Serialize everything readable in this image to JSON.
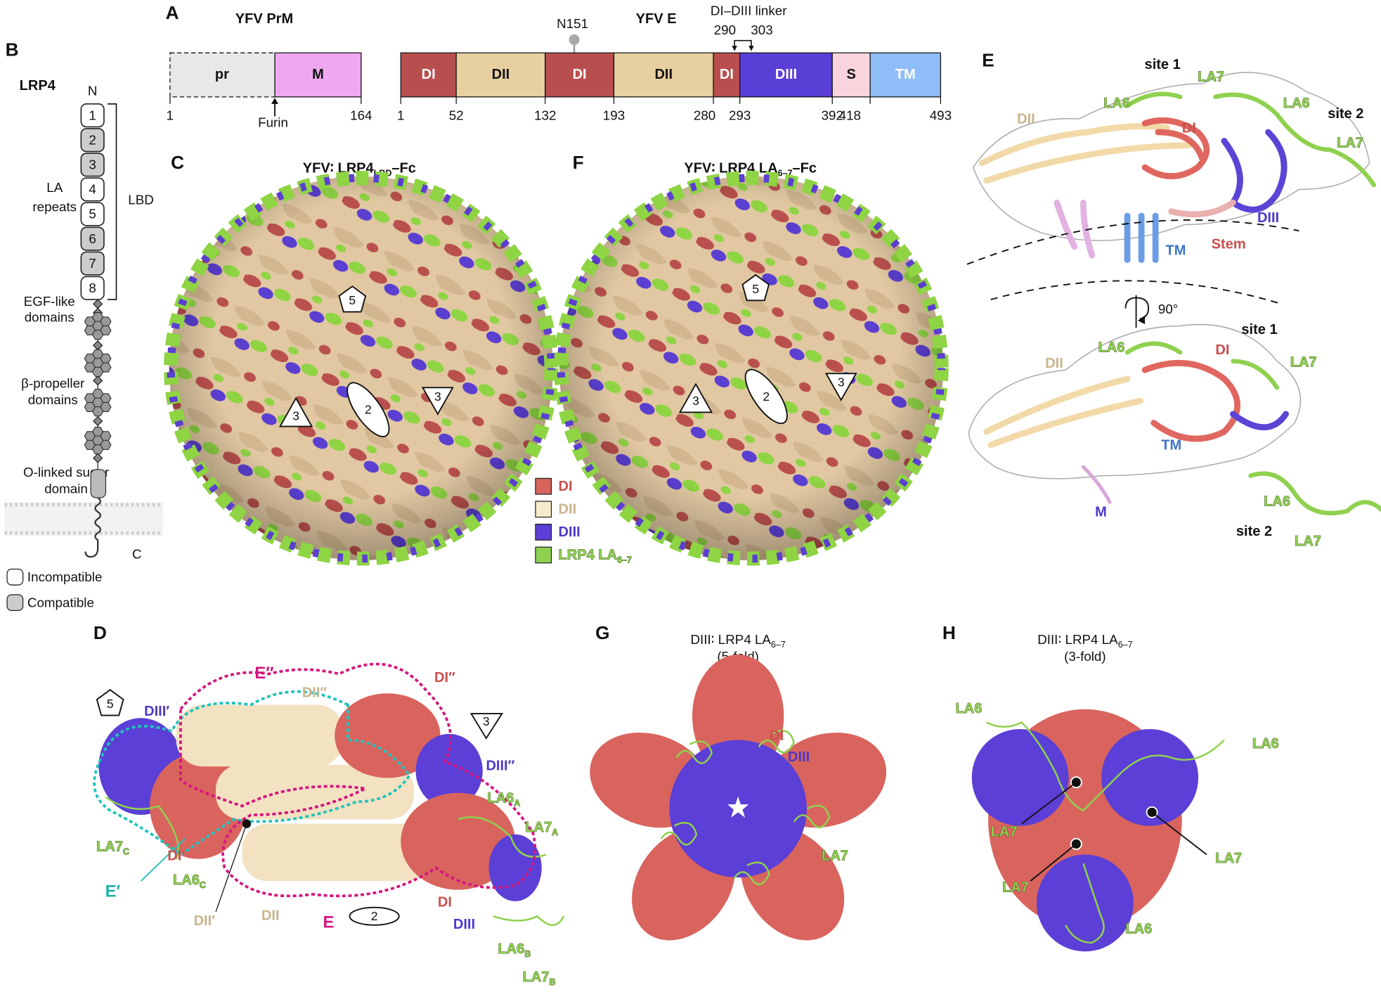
{
  "panel_a": {
    "label": "A",
    "prm": {
      "title": "YFV PrM",
      "segments": [
        "pr",
        "M"
      ],
      "positions": [
        1,
        164
      ],
      "cleavage": "Furin"
    },
    "e": {
      "title": "YFV E",
      "glycan": "N151",
      "linker": "DI–DIII linker",
      "linker_positions": [
        290,
        303
      ],
      "segments": [
        "DI",
        "DII",
        "DI",
        "DII",
        "DI",
        "DIII",
        "S",
        "TM"
      ],
      "positions": [
        1,
        52,
        132,
        193,
        280,
        293,
        392,
        418,
        493
      ]
    }
  },
  "panel_b": {
    "label": "B",
    "title": "LRP4",
    "n_term": "N",
    "repeats": [
      1,
      2,
      3,
      4,
      5,
      6,
      7,
      8
    ],
    "repeats_label": [
      "LA",
      "repeats"
    ],
    "lbd": "LBD",
    "egf": [
      "EGF-like",
      "domains"
    ],
    "propeller": [
      "β-propeller",
      "domains"
    ],
    "sugar": [
      "O-linked sugar",
      "domain"
    ],
    "c_term": "C",
    "legend": [
      "Incompatible",
      "Compatible"
    ]
  },
  "panel_c": {
    "label": "C",
    "title": [
      "YFV∶ LRP4",
      "LBD",
      "–Fc"
    ],
    "symmetry": [
      5,
      2,
      3,
      3
    ]
  },
  "legend": [
    {
      "name": [
        "DI"
      ],
      "color": "#d9645e"
    },
    {
      "name": [
        "DII"
      ],
      "color": "#f6ebc8"
    },
    {
      "name": [
        "DIII"
      ],
      "color": "#5b3fd6"
    },
    {
      "name": [
        "LRP4 LA",
        "6–7"
      ],
      "color": "#8fd14f"
    }
  ],
  "panel_f": {
    "label": "F",
    "title": [
      "YFV∶ LRP4 LA",
      "6–7",
      "–Fc"
    ],
    "symmetry": [
      5,
      2,
      3,
      3
    ]
  },
  "panel_e": {
    "label": "E",
    "top": [
      "site 1",
      "LA7",
      "LA6",
      "LA6",
      "site 2",
      "LA7",
      "DII",
      "DI",
      "DIII",
      "TM",
      "Stem"
    ],
    "rotation": "90°",
    "bottom": [
      "site 1",
      "LA6",
      "DI",
      "LA7",
      "DII",
      "TM",
      "M",
      "LA6",
      "site 2",
      "LA7"
    ]
  },
  "panel_d": {
    "label": "D",
    "symmetry": [
      5,
      3,
      2
    ],
    "labels": [
      "E″",
      "DII″",
      "DI″",
      "DIII′",
      "DIII″",
      [
        "LA6",
        "A"
      ],
      [
        "LA7",
        "A"
      ],
      [
        "LA7",
        "C"
      ],
      "DI′",
      "E′",
      [
        "LA6",
        "C"
      ],
      "DII′",
      "DII",
      "E",
      "DI",
      "DIII",
      [
        "LA6",
        "B"
      ],
      [
        "LA7",
        "B"
      ]
    ]
  },
  "panel_g": {
    "label": "G",
    "title": [
      "DIII∶ LRP4 LA",
      "6–7",
      "(5-fold)"
    ],
    "labels": [
      "DI",
      "DIII",
      "LA7"
    ]
  },
  "panel_h": {
    "label": "H",
    "title": [
      "DIII∶ LRP4 LA",
      "6–7",
      "(3-fold)"
    ],
    "labels": [
      "LA6",
      "LA6",
      "LA7",
      "LA7",
      "LA7",
      "LA6"
    ]
  }
}
